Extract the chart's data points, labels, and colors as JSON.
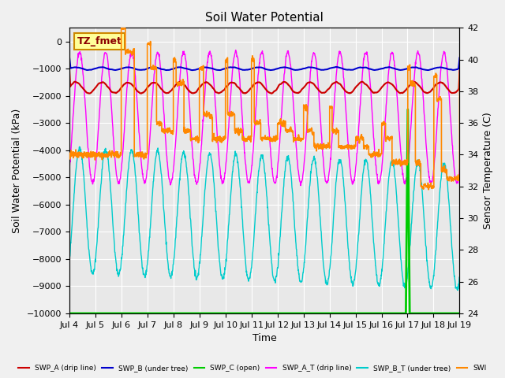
{
  "title": "Soil Water Potential",
  "xlabel": "Time",
  "ylabel_left": "Soil Water Potential (kPa)",
  "ylabel_right": "Sensor Temperature (C)",
  "ylim_left": [
    -10000,
    500
  ],
  "ylim_right": [
    24,
    42
  ],
  "yticks_left": [
    0,
    -1000,
    -2000,
    -3000,
    -4000,
    -5000,
    -6000,
    -7000,
    -8000,
    -9000,
    -10000
  ],
  "yticks_right": [
    24,
    26,
    28,
    30,
    32,
    34,
    36,
    38,
    40,
    42
  ],
  "xtick_labels": [
    "Jul 4",
    "Jul 5",
    "Jul 6",
    "Jul 7",
    "Jul 8",
    "Jul 9",
    "Jul 10",
    "Jul 11",
    "Jul 12",
    "Jul 13",
    "Jul 14",
    "Jul 15",
    "Jul 16",
    "Jul 17",
    "Jul 18",
    "Jul 19"
  ],
  "annotation_text": "TZ_fmet",
  "annotation_color": "#8B0000",
  "annotation_bg": "#FFFF99",
  "annotation_edge": "#CC8800",
  "plot_bg": "#E8E8E8",
  "fig_bg": "#F0F0F0",
  "grid_color": "#FFFFFF",
  "colors": {
    "SWP_A": "#CC0000",
    "SWP_B": "#0000CC",
    "SWP_C": "#00CC00",
    "SWP_A_T": "#FF00FF",
    "SWP_B_T": "#00CCCC",
    "SWP_C_T": "#FF8800"
  },
  "n_days": 15,
  "pts_per_day": 96
}
